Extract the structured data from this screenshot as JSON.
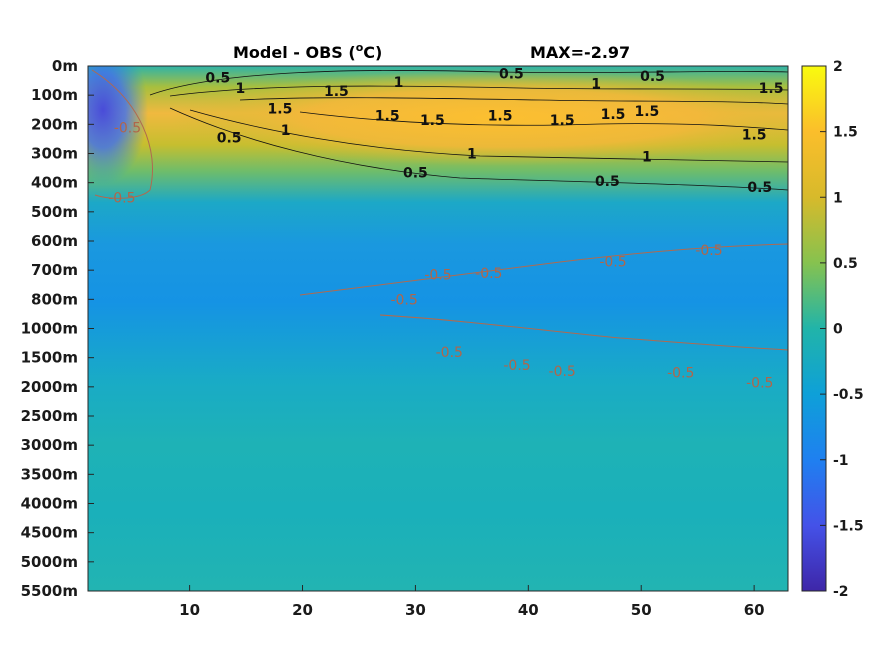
{
  "chart_data": {
    "type": "heatmap",
    "title_left": "Model - OBS (",
    "title_degree": "o",
    "title_unit": "C)",
    "title_right": "MAX=-2.97",
    "x_ticks": [
      "10",
      "20",
      "30",
      "40",
      "50",
      "60"
    ],
    "x_tick_values": [
      10,
      20,
      30,
      40,
      50,
      60
    ],
    "xlim": [
      1,
      63
    ],
    "y_ticks": [
      "0m",
      "100m",
      "200m",
      "300m",
      "400m",
      "500m",
      "600m",
      "700m",
      "800m",
      "1000m",
      "1500m",
      "2000m",
      "2500m",
      "3000m",
      "3500m",
      "4000m",
      "4500m",
      "5000m",
      "5500m"
    ],
    "colorbar": {
      "ticks": [
        "2",
        "1.5",
        "1",
        "0.5",
        "0",
        "-0.5",
        "-1",
        "-1.5",
        "-2"
      ],
      "tick_values": [
        2,
        1.5,
        1,
        0.5,
        0,
        -0.5,
        -1,
        -1.5,
        -2
      ],
      "range": [
        -2,
        2
      ],
      "colormap": "parula"
    },
    "contour_labels": [
      {
        "text": "0.5",
        "x": 12.5,
        "y": 0.4,
        "style": "positive"
      },
      {
        "text": "1",
        "x": 14.5,
        "y": 0.75,
        "style": "positive"
      },
      {
        "text": "1.5",
        "x": 23,
        "y": 0.85,
        "style": "positive"
      },
      {
        "text": "1",
        "x": 28.5,
        "y": 0.55,
        "style": "positive"
      },
      {
        "text": "0.5",
        "x": 38.5,
        "y": 0.25,
        "style": "positive"
      },
      {
        "text": "1",
        "x": 46,
        "y": 0.6,
        "style": "positive"
      },
      {
        "text": "0.5",
        "x": 51,
        "y": 0.35,
        "style": "positive"
      },
      {
        "text": "1.5",
        "x": 61.5,
        "y": 0.75,
        "style": "positive"
      },
      {
        "text": "1.5",
        "x": 18,
        "y": 1.45,
        "style": "positive"
      },
      {
        "text": "1.5",
        "x": 27.5,
        "y": 1.7,
        "style": "positive"
      },
      {
        "text": "1.5",
        "x": 31.5,
        "y": 1.85,
        "style": "positive"
      },
      {
        "text": "1.5",
        "x": 37.5,
        "y": 1.7,
        "style": "positive"
      },
      {
        "text": "1.5",
        "x": 43,
        "y": 1.85,
        "style": "positive"
      },
      {
        "text": "1.5",
        "x": 47.5,
        "y": 1.65,
        "style": "positive"
      },
      {
        "text": "1.5",
        "x": 50.5,
        "y": 1.55,
        "style": "positive"
      },
      {
        "text": "1",
        "x": 18.5,
        "y": 2.2,
        "style": "positive"
      },
      {
        "text": "0.5",
        "x": 13.5,
        "y": 2.45,
        "style": "positive"
      },
      {
        "text": "1.5",
        "x": 60,
        "y": 2.35,
        "style": "positive"
      },
      {
        "text": "1",
        "x": 35,
        "y": 3.0,
        "style": "positive"
      },
      {
        "text": "1",
        "x": 50.5,
        "y": 3.1,
        "style": "positive"
      },
      {
        "text": "0.5",
        "x": 30,
        "y": 3.65,
        "style": "positive"
      },
      {
        "text": "0.5",
        "x": 47,
        "y": 3.95,
        "style": "positive"
      },
      {
        "text": "0.5",
        "x": 60.5,
        "y": 4.15,
        "style": "positive"
      },
      {
        "text": "-0.5",
        "x": 4.5,
        "y": 2.1,
        "style": "negative"
      },
      {
        "text": "-0.5",
        "x": 4,
        "y": 4.5,
        "style": "negative"
      },
      {
        "text": "-0.5",
        "x": 32,
        "y": 7.15,
        "style": "negative"
      },
      {
        "text": "-0.5",
        "x": 36.5,
        "y": 7.1,
        "style": "negative"
      },
      {
        "text": "-0.5",
        "x": 47.5,
        "y": 6.7,
        "style": "negative"
      },
      {
        "text": "-0.5",
        "x": 56,
        "y": 6.3,
        "style": "negative"
      },
      {
        "text": "-0.5",
        "x": 29,
        "y": 8.0,
        "style": "negative"
      },
      {
        "text": "-0.5",
        "x": 33,
        "y": 9.8,
        "style": "negative"
      },
      {
        "text": "-0.5",
        "x": 39,
        "y": 10.25,
        "style": "negative"
      },
      {
        "text": "-0.5",
        "x": 43,
        "y": 10.45,
        "style": "negative"
      },
      {
        "text": "-0.5",
        "x": 53.5,
        "y": 10.5,
        "style": "negative"
      },
      {
        "text": "-0.5",
        "x": 60.5,
        "y": 10.85,
        "style": "negative"
      }
    ]
  }
}
